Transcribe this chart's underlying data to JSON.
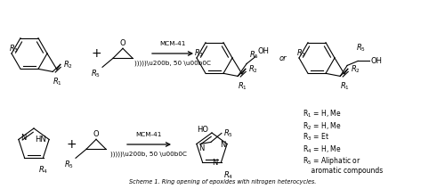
{
  "title": "Scheme 1. Ring opening of epoxides with nitrogen heterocycles.",
  "background_color": "#ffffff",
  "figsize": [
    5.0,
    2.12
  ],
  "dpi": 100,
  "legend": [
    "R$_1$ = H, Me",
    "R$_2$ = H, Me",
    "R$_3$ = Et",
    "R$_4$ = H, Me",
    "R$_5$ = Aliphatic or",
    "    aromatic compounds"
  ],
  "arrow1_label_top": "MCM-41",
  "arrow1_label_bot": ")))))\\u200b, 50 \\u00b0C",
  "arrow2_label_top": "MCM-41",
  "arrow2_label_bot": ")))))\\u200b, 50 \\u00b0C",
  "or_text": "or"
}
